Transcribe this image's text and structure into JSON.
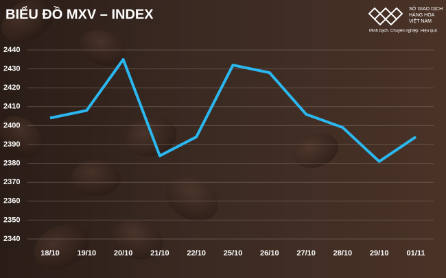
{
  "chart_data": {
    "type": "line",
    "title": "BIỂU ĐỒ MXV – INDEX",
    "categories": [
      "18/10",
      "19/10",
      "20/10",
      "21/10",
      "22/10",
      "25/10",
      "26/10",
      "27/10",
      "28/10",
      "29/10",
      "01/11"
    ],
    "values": [
      2404,
      2408,
      2435,
      2384,
      2394,
      2432,
      2428,
      2406,
      2399,
      2381,
      2394
    ],
    "color": "#2bb7f0",
    "ylim": [
      2340,
      2440
    ],
    "yticks": [
      2340,
      2350,
      2360,
      2370,
      2380,
      2390,
      2400,
      2410,
      2420,
      2430,
      2440
    ],
    "grid": true
  },
  "logo": {
    "name": [
      "SỞ GIAO DỊCH",
      "HÀNG HÓA",
      "VIỆT NAM"
    ],
    "slogan": "Minh bạch. Chuyên nghiệp. Hiệu quả"
  }
}
